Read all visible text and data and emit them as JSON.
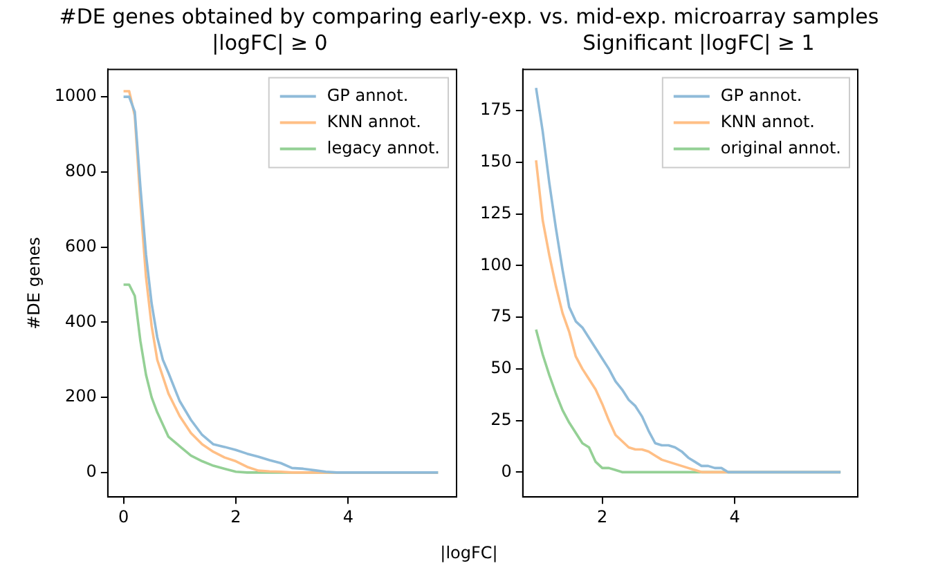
{
  "chart_data": [
    {
      "type": "line",
      "title": "#DE genes obtained by comparing early-exp. vs. mid-exp. microarray samples",
      "subtitle": "|logFC| ≥ 0",
      "xlabel": "|logFC|",
      "ylabel": "#DE genes",
      "xlim": [
        -0.28,
        5.93
      ],
      "xticks": [
        0,
        2,
        4
      ],
      "ylim": [
        -65,
        1073
      ],
      "yticks": [
        0,
        200,
        400,
        600,
        800,
        1000
      ],
      "grid": false,
      "legend": "top right",
      "marker": "none",
      "line_style": "solid",
      "series": [
        {
          "name": "GP annot.",
          "color": "#8fbbd9",
          "x": [
            0,
            0.1,
            0.2,
            0.3,
            0.4,
            0.5,
            0.6,
            0.7,
            0.8,
            1.0,
            1.2,
            1.4,
            1.6,
            1.8,
            2.0,
            2.2,
            2.4,
            2.6,
            2.8,
            3.0,
            3.2,
            3.4,
            3.6,
            3.8,
            5.6
          ],
          "values": [
            1000,
            1000,
            960,
            760,
            580,
            450,
            360,
            300,
            265,
            190,
            140,
            100,
            75,
            68,
            60,
            50,
            42,
            33,
            25,
            12,
            10,
            6,
            2,
            0,
            0
          ]
        },
        {
          "name": "KNN annot.",
          "color": "#ffbf86",
          "x": [
            0,
            0.1,
            0.2,
            0.3,
            0.4,
            0.5,
            0.6,
            0.8,
            1.0,
            1.2,
            1.4,
            1.6,
            1.8,
            2.0,
            2.2,
            2.4,
            2.6,
            2.8,
            3.0,
            5.6
          ],
          "values": [
            1015,
            1015,
            950,
            720,
            520,
            390,
            300,
            210,
            150,
            105,
            75,
            55,
            40,
            30,
            15,
            5,
            3,
            2,
            0,
            0
          ]
        },
        {
          "name": "legacy annot.",
          "color": "#94d095",
          "x": [
            0,
            0.1,
            0.2,
            0.3,
            0.4,
            0.5,
            0.6,
            0.8,
            1.0,
            1.2,
            1.4,
            1.6,
            1.8,
            2.0,
            2.2,
            5.6
          ],
          "values": [
            500,
            500,
            470,
            350,
            260,
            200,
            160,
            95,
            70,
            45,
            30,
            18,
            10,
            2,
            0,
            0
          ]
        }
      ]
    },
    {
      "type": "line",
      "subtitle": "Significant |logFC| ≥ 1",
      "xlim": [
        0.8,
        5.86
      ],
      "xticks": [
        2,
        4
      ],
      "ylim": [
        -12,
        195
      ],
      "yticks": [
        0,
        25,
        50,
        75,
        100,
        125,
        150,
        175
      ],
      "grid": false,
      "legend": "top right",
      "marker": "none",
      "line_style": "solid",
      "series": [
        {
          "name": "GP annot.",
          "color": "#8fbbd9",
          "x": [
            1.0,
            1.1,
            1.2,
            1.3,
            1.4,
            1.5,
            1.6,
            1.7,
            1.8,
            1.9,
            2.0,
            2.1,
            2.2,
            2.3,
            2.4,
            2.5,
            2.6,
            2.7,
            2.8,
            2.9,
            3.0,
            3.1,
            3.2,
            3.3,
            3.4,
            3.5,
            3.6,
            3.7,
            3.8,
            3.9,
            5.6
          ],
          "values": [
            186,
            165,
            140,
            118,
            98,
            80,
            73,
            70,
            65,
            60,
            55,
            50,
            44,
            40,
            35,
            32,
            27,
            20,
            14,
            13,
            13,
            12,
            10,
            7,
            5,
            3,
            3,
            2,
            2,
            0,
            0
          ]
        },
        {
          "name": "KNN annot.",
          "color": "#ffbf86",
          "x": [
            1.0,
            1.1,
            1.2,
            1.3,
            1.4,
            1.5,
            1.6,
            1.7,
            1.8,
            1.9,
            2.0,
            2.1,
            2.2,
            2.3,
            2.4,
            2.5,
            2.6,
            2.7,
            2.8,
            2.9,
            3.0,
            3.1,
            3.2,
            3.3,
            3.4,
            3.5,
            5.6
          ],
          "values": [
            151,
            122,
            105,
            90,
            77,
            68,
            56,
            50,
            45,
            40,
            33,
            25,
            18,
            15,
            12,
            11,
            11,
            10,
            8,
            6,
            5,
            4,
            3,
            2,
            1,
            0,
            0
          ]
        },
        {
          "name": "original annot.",
          "color": "#94d095",
          "x": [
            1.0,
            1.1,
            1.2,
            1.3,
            1.4,
            1.5,
            1.6,
            1.7,
            1.8,
            1.9,
            2.0,
            2.1,
            2.2,
            2.3,
            5.6
          ],
          "values": [
            69,
            57,
            47,
            38,
            30,
            24,
            19,
            14,
            12,
            5,
            2,
            2,
            1,
            0,
            0
          ]
        }
      ]
    }
  ]
}
